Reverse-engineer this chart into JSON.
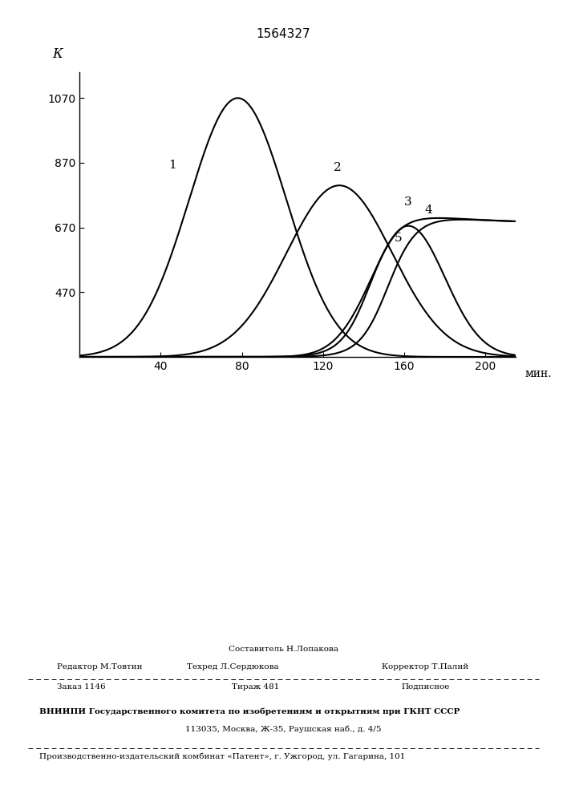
{
  "title": "1564327",
  "xlabel": "мин.",
  "ylabel": "К",
  "xlim": [
    0,
    215
  ],
  "ylim": [
    270,
    1150
  ],
  "xticks": [
    40,
    80,
    120,
    160,
    200
  ],
  "yticks": [
    470,
    670,
    870,
    1070
  ],
  "background_color": "#ffffff",
  "curve_color": "#000000",
  "curve_label_positions": [
    [
      46,
      862,
      "1"
    ],
    [
      127,
      855,
      "2"
    ],
    [
      162,
      748,
      "3"
    ],
    [
      172,
      723,
      "4"
    ],
    [
      157,
      638,
      "5"
    ]
  ],
  "footer": {
    "sostavitel": "Составитель Н.Лопакова",
    "redaktor": "Редактор М.Товтин",
    "tehred": "Техред Л.Сердюкова",
    "korrektor": "Корректор Т.Палий",
    "zakaz": "Заказ 1146",
    "tirazh": "Тираж 481",
    "podpisnoe": "Подписное",
    "vniipи_line1": "ВНИИПИ Государственного комитета по изобретениям и открытиям при ГКНТ СССР",
    "vniipи_line2": "113035, Москва, Ж-35, Раушская наб., д. 4/5",
    "production": "Производственно-издательский комбинат «Патент», г. Ужгород, ул. Гагарина, 101"
  }
}
